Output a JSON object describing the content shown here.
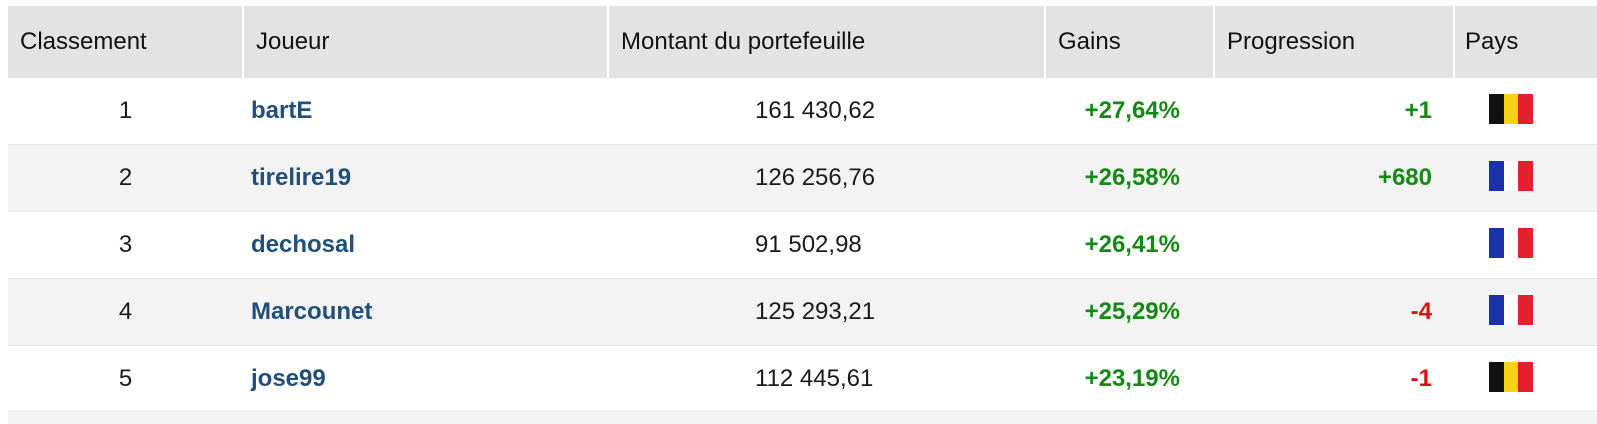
{
  "headers": {
    "rank": "Classement",
    "player": "Joueur",
    "wallet": "Montant du portefeuille",
    "gains": "Gains",
    "progression": "Progression",
    "country": "Pays"
  },
  "rows": [
    {
      "rank": "1",
      "player": "bartE",
      "wallet": "161 430,62",
      "gains": "+27,64%",
      "progression": "+1",
      "progression_sign": "positive",
      "country_flag": "belgium-flag"
    },
    {
      "rank": "2",
      "player": "tirelire19",
      "wallet": "126 256,76",
      "gains": "+26,58%",
      "progression": "+680",
      "progression_sign": "positive",
      "country_flag": "france-flag"
    },
    {
      "rank": "3",
      "player": "dechosal",
      "wallet": "91 502,98",
      "gains": "+26,41%",
      "progression": "",
      "progression_sign": "none",
      "country_flag": "france-flag"
    },
    {
      "rank": "4",
      "player": "Marcounet",
      "wallet": "125 293,21",
      "gains": "+25,29%",
      "progression": "-4",
      "progression_sign": "negative",
      "country_flag": "france-flag"
    },
    {
      "rank": "5",
      "player": "jose99",
      "wallet": "112 445,61",
      "gains": "+23,19%",
      "progression": "-1",
      "progression_sign": "negative",
      "country_flag": "belgium-flag"
    }
  ],
  "colors": {
    "header_bg": "#e3e3e3",
    "row_alt_bg": "#f3f3f3",
    "player_link": "#1f4f7a",
    "positive": "#148a14",
    "negative": "#e01010"
  },
  "flags": {
    "belgium-flag": [
      "#111111",
      "#f7d215",
      "#e4202f"
    ],
    "france-flag": [
      "#1a31a8",
      "#ffffff",
      "#e4202f"
    ]
  }
}
